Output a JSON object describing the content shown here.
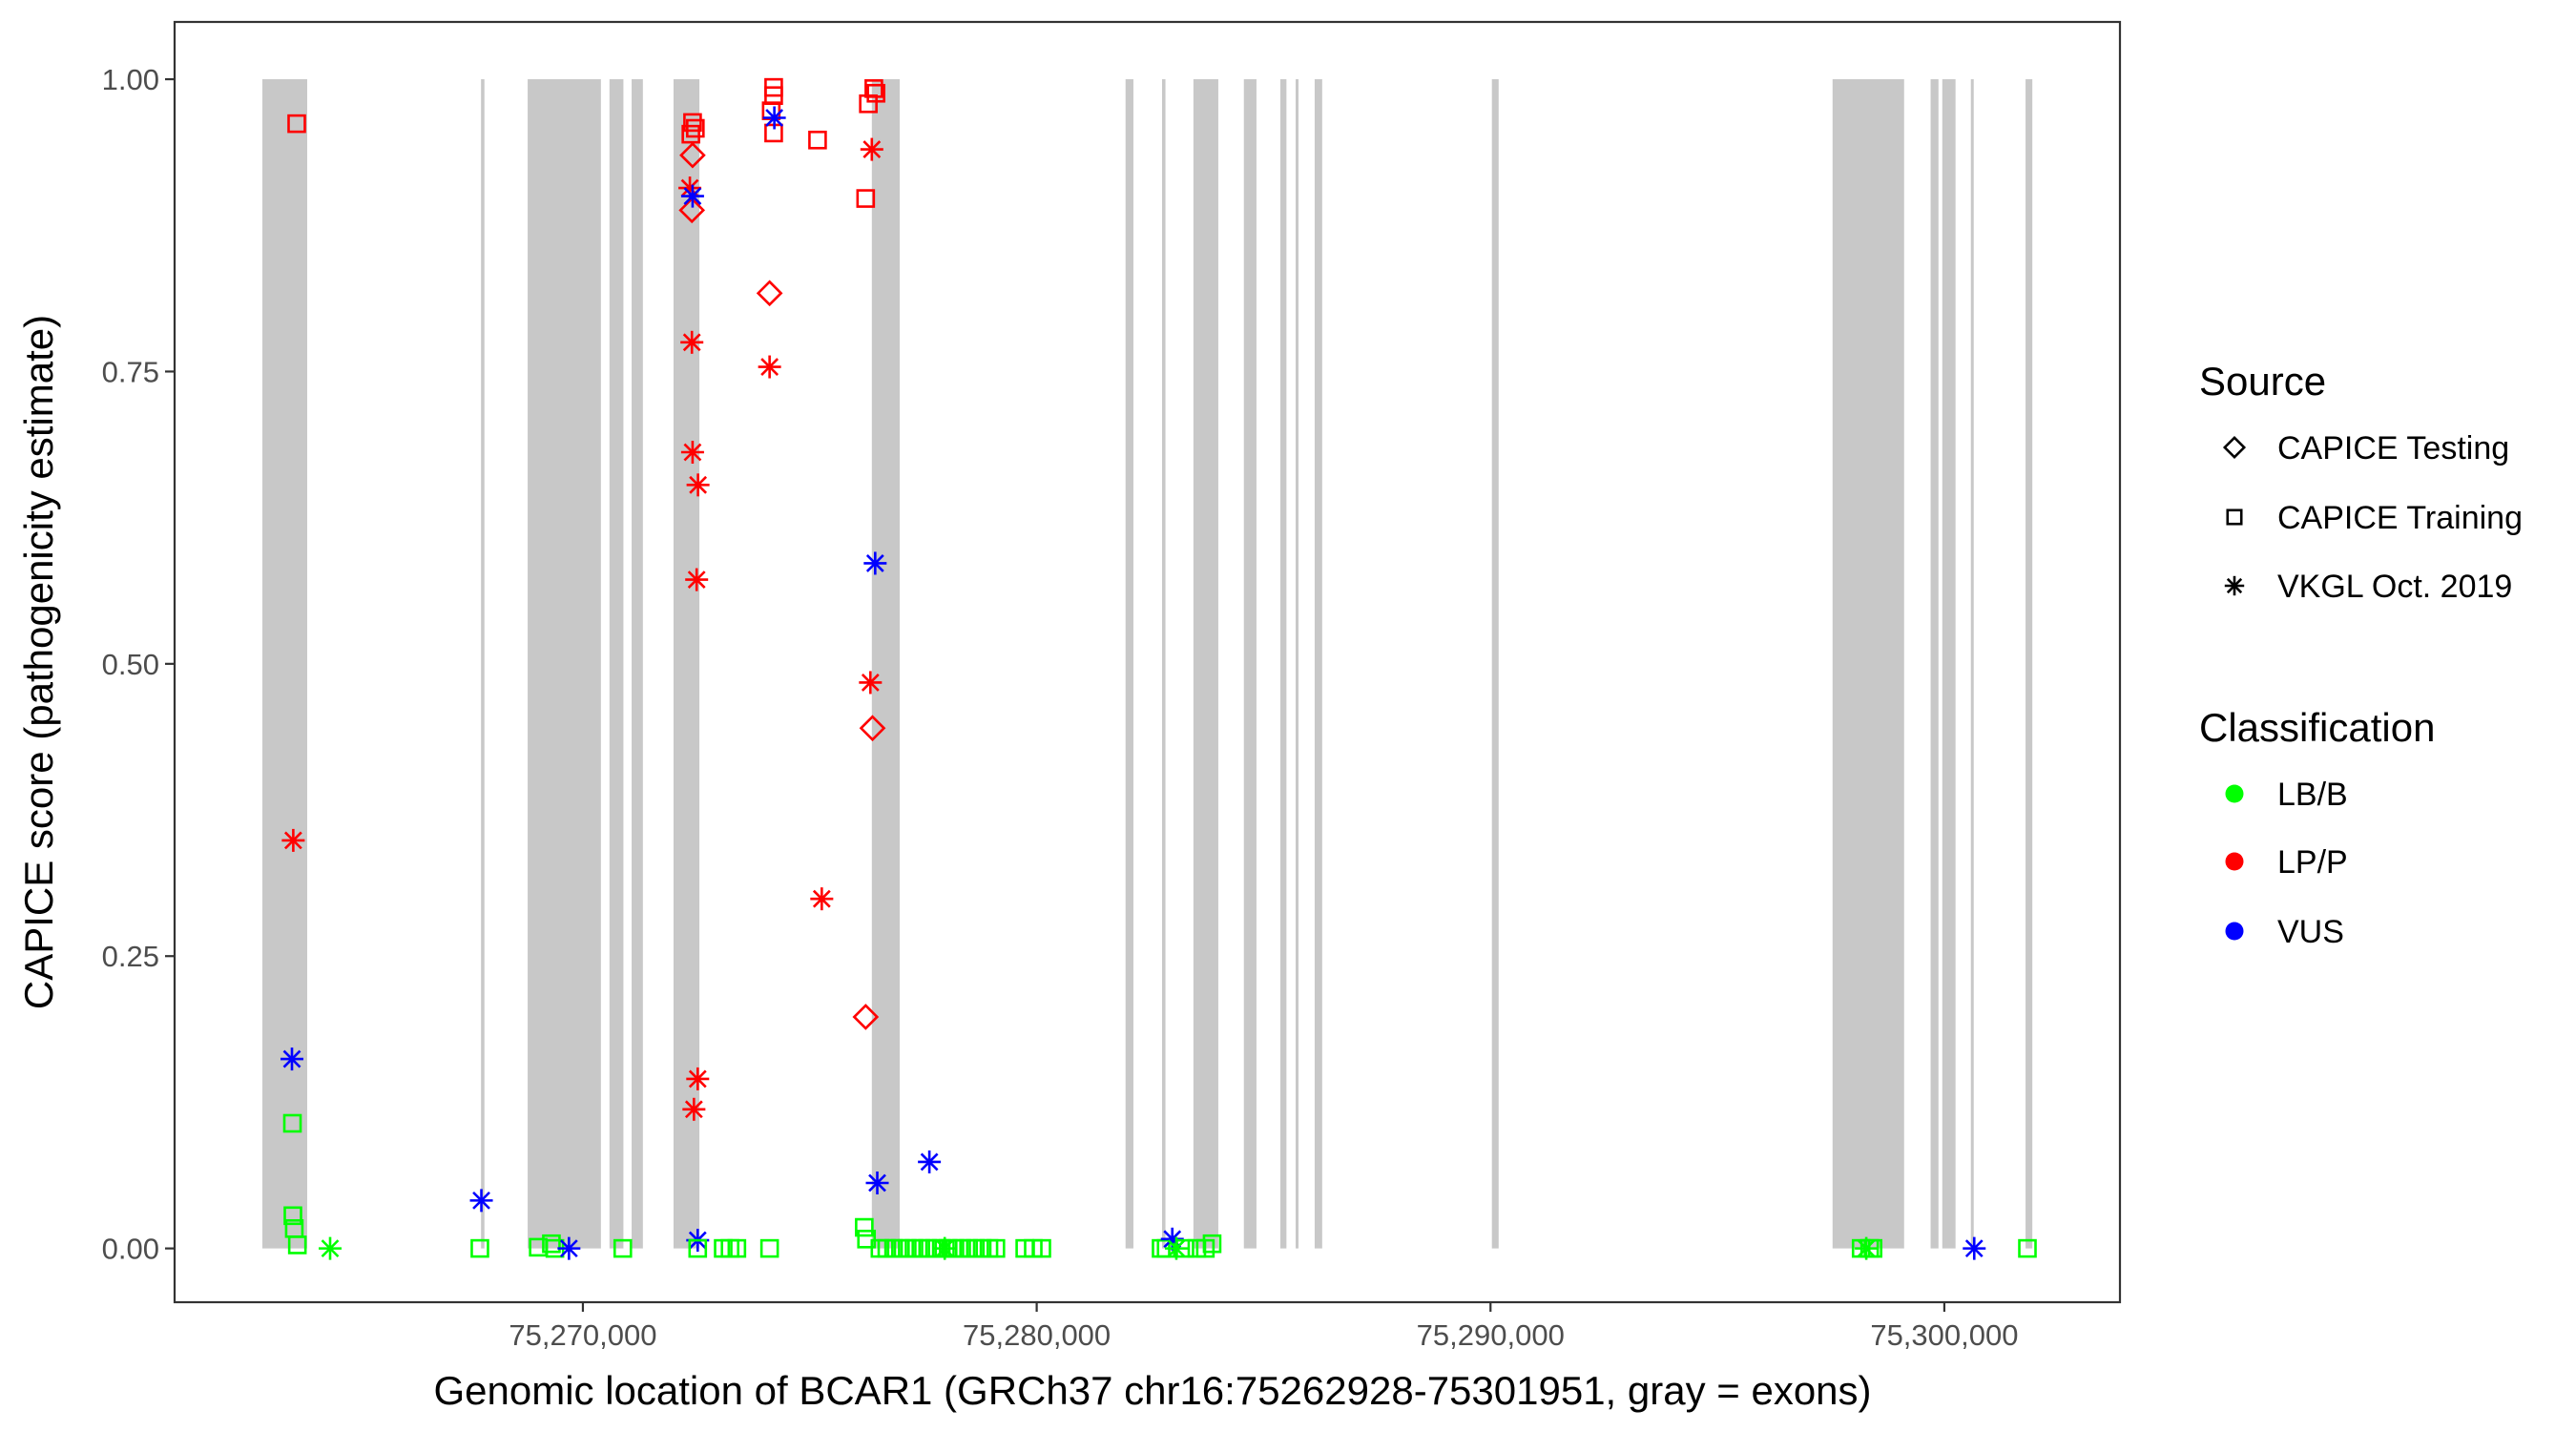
{
  "chart_data": {
    "type": "scatter",
    "xlabel": "Genomic location of BCAR1 (GRCh37 chr16:75262928-75301951, gray = exons)",
    "ylabel": "CAPICE score (pathogenicity estimate)",
    "xlim": [
      75261003,
      75303870
    ],
    "ylim": [
      -0.046,
      1.049
    ],
    "x_ticks": [
      75270000,
      75280000,
      75290000,
      75300000
    ],
    "x_tick_labels": [
      "75,270,000",
      "75,280,000",
      "75,290,000",
      "75,300,000"
    ],
    "y_ticks": [
      0,
      0.25,
      0.5,
      0.75,
      1.0
    ],
    "y_tick_labels": [
      "0.00",
      "0.25",
      "0.50",
      "0.75",
      "1.00"
    ],
    "grid": false,
    "legend_placement": "right",
    "exon_color": "#C8C8C8",
    "exons": [
      [
        75262937,
        75263925
      ],
      [
        75267755,
        75267830
      ],
      [
        75268783,
        75270397
      ],
      [
        75270586,
        75270893
      ],
      [
        75271074,
        75271322
      ],
      [
        75271997,
        75272567
      ],
      [
        75276367,
        75276981
      ],
      [
        75281958,
        75282131
      ],
      [
        75282762,
        75282837
      ],
      [
        75283453,
        75284002
      ],
      [
        75284565,
        75284843
      ],
      [
        75285368,
        75285503
      ],
      [
        75285706,
        75285766
      ],
      [
        75286125,
        75286291
      ],
      [
        75290030,
        75290179
      ],
      [
        75297537,
        75299114
      ],
      [
        75299698,
        75299871
      ],
      [
        75299955,
        75300247
      ],
      [
        75300585,
        75300644
      ],
      [
        75301790,
        75301939
      ]
    ],
    "legend": {
      "source_title": "Source",
      "sources": [
        {
          "key": "test",
          "label": "CAPICE Testing",
          "shape": "diamond"
        },
        {
          "key": "train",
          "label": "CAPICE Training",
          "shape": "square"
        },
        {
          "key": "vkgl",
          "label": "VKGL Oct. 2019",
          "shape": "asterisk"
        }
      ],
      "classification_title": "Classification",
      "classes": [
        {
          "label": "LB/B",
          "color": "#00FF00"
        },
        {
          "label": "LP/P",
          "color": "#FF0000"
        },
        {
          "label": "VUS",
          "color": "#0000FF"
        }
      ]
    },
    "points": [
      {
        "x": 75263694,
        "y": 0.962,
        "source": "train",
        "class": "LP/P"
      },
      {
        "x": 75263618,
        "y": 0.349,
        "source": "vkgl",
        "class": "LP/P"
      },
      {
        "x": 75263589,
        "y": 0.162,
        "source": "vkgl",
        "class": "VUS"
      },
      {
        "x": 75263600,
        "y": 0.107,
        "source": "train",
        "class": "LB/B"
      },
      {
        "x": 75263610,
        "y": 0.028,
        "source": "train",
        "class": "LB/B"
      },
      {
        "x": 75263640,
        "y": 0.017,
        "source": "train",
        "class": "LB/B"
      },
      {
        "x": 75263708,
        "y": 0.003,
        "source": "train",
        "class": "LB/B"
      },
      {
        "x": 75264430,
        "y": 0.0,
        "source": "vkgl",
        "class": "LB/B"
      },
      {
        "x": 75267763,
        "y": 0.041,
        "source": "vkgl",
        "class": "VUS"
      },
      {
        "x": 75267730,
        "y": 0.0,
        "source": "train",
        "class": "LB/B"
      },
      {
        "x": 75269016,
        "y": 0.001,
        "source": "train",
        "class": "LB/B"
      },
      {
        "x": 75269306,
        "y": 0.004,
        "source": "train",
        "class": "LB/B"
      },
      {
        "x": 75269384,
        "y": 0.0,
        "source": "train",
        "class": "LB/B"
      },
      {
        "x": 75269693,
        "y": 0.0,
        "source": "vkgl",
        "class": "VUS"
      },
      {
        "x": 75270879,
        "y": 0.0,
        "source": "train",
        "class": "LB/B"
      },
      {
        "x": 75272417,
        "y": 0.963,
        "source": "train",
        "class": "LP/P"
      },
      {
        "x": 75272478,
        "y": 0.958,
        "source": "train",
        "class": "LP/P"
      },
      {
        "x": 75272380,
        "y": 0.953,
        "source": "train",
        "class": "LP/P"
      },
      {
        "x": 75272417,
        "y": 0.935,
        "source": "test",
        "class": "LP/P"
      },
      {
        "x": 75272402,
        "y": 0.888,
        "source": "test",
        "class": "LP/P"
      },
      {
        "x": 75272357,
        "y": 0.907,
        "source": "vkgl",
        "class": "LP/P"
      },
      {
        "x": 75272417,
        "y": 0.9,
        "source": "vkgl",
        "class": "VUS"
      },
      {
        "x": 75272402,
        "y": 0.775,
        "source": "vkgl",
        "class": "LP/P"
      },
      {
        "x": 75272417,
        "y": 0.681,
        "source": "vkgl",
        "class": "LP/P"
      },
      {
        "x": 75272537,
        "y": 0.653,
        "source": "vkgl",
        "class": "LP/P"
      },
      {
        "x": 75272507,
        "y": 0.572,
        "source": "vkgl",
        "class": "LP/P"
      },
      {
        "x": 75272530,
        "y": 0.145,
        "source": "vkgl",
        "class": "LP/P"
      },
      {
        "x": 75272447,
        "y": 0.119,
        "source": "vkgl",
        "class": "LP/P"
      },
      {
        "x": 75272530,
        "y": 0.007,
        "source": "vkgl",
        "class": "VUS"
      },
      {
        "x": 75272530,
        "y": 0.0,
        "source": "train",
        "class": "LB/B"
      },
      {
        "x": 75273092,
        "y": 0.0,
        "source": "train",
        "class": "LB/B"
      },
      {
        "x": 75273243,
        "y": 0.0,
        "source": "train",
        "class": "LB/B"
      },
      {
        "x": 75273393,
        "y": 0.0,
        "source": "train",
        "class": "LB/B"
      },
      {
        "x": 75274114,
        "y": 0.0,
        "source": "train",
        "class": "LB/B"
      },
      {
        "x": 75274204,
        "y": 0.993,
        "source": "train",
        "class": "LP/P"
      },
      {
        "x": 75274204,
        "y": 0.986,
        "source": "train",
        "class": "LP/P"
      },
      {
        "x": 75274150,
        "y": 0.973,
        "source": "train",
        "class": "LP/P"
      },
      {
        "x": 75274204,
        "y": 0.954,
        "source": "train",
        "class": "LP/P"
      },
      {
        "x": 75274219,
        "y": 0.967,
        "source": "vkgl",
        "class": "VUS"
      },
      {
        "x": 75274114,
        "y": 0.817,
        "source": "test",
        "class": "LP/P"
      },
      {
        "x": 75274114,
        "y": 0.754,
        "source": "vkgl",
        "class": "LP/P"
      },
      {
        "x": 75275171,
        "y": 0.948,
        "source": "train",
        "class": "LP/P"
      },
      {
        "x": 75275264,
        "y": 0.299,
        "source": "vkgl",
        "class": "LP/P"
      },
      {
        "x": 75276411,
        "y": 0.992,
        "source": "train",
        "class": "LP/P"
      },
      {
        "x": 75276459,
        "y": 0.988,
        "source": "train",
        "class": "LP/P"
      },
      {
        "x": 75276290,
        "y": 0.979,
        "source": "train",
        "class": "LP/P"
      },
      {
        "x": 75276231,
        "y": 0.898,
        "source": "train",
        "class": "LP/P"
      },
      {
        "x": 75276367,
        "y": 0.94,
        "source": "vkgl",
        "class": "LP/P"
      },
      {
        "x": 75276441,
        "y": 0.586,
        "source": "vkgl",
        "class": "VUS"
      },
      {
        "x": 75276336,
        "y": 0.484,
        "source": "vkgl",
        "class": "LP/P"
      },
      {
        "x": 75276382,
        "y": 0.445,
        "source": "test",
        "class": "LP/P"
      },
      {
        "x": 75276231,
        "y": 0.198,
        "source": "test",
        "class": "LP/P"
      },
      {
        "x": 75276487,
        "y": 0.056,
        "source": "vkgl",
        "class": "VUS"
      },
      {
        "x": 75277635,
        "y": 0.074,
        "source": "vkgl",
        "class": "VUS"
      },
      {
        "x": 75276200,
        "y": 0.018,
        "source": "train",
        "class": "LB/B"
      },
      {
        "x": 75276250,
        "y": 0.008,
        "source": "train",
        "class": "LB/B"
      },
      {
        "x": 75276546,
        "y": 0.0,
        "source": "train",
        "class": "LB/B"
      },
      {
        "x": 75276697,
        "y": 0.0,
        "source": "train",
        "class": "LB/B"
      },
      {
        "x": 75276846,
        "y": 0.0,
        "source": "train",
        "class": "LB/B"
      },
      {
        "x": 75276998,
        "y": 0.0,
        "source": "train",
        "class": "LB/B"
      },
      {
        "x": 75277147,
        "y": 0.0,
        "source": "train",
        "class": "LB/B"
      },
      {
        "x": 75277296,
        "y": 0.0,
        "source": "train",
        "class": "LB/B"
      },
      {
        "x": 75277447,
        "y": 0.0,
        "source": "train",
        "class": "LB/B"
      },
      {
        "x": 75277597,
        "y": 0.0,
        "source": "train",
        "class": "LB/B"
      },
      {
        "x": 75277748,
        "y": 0.0,
        "source": "train",
        "class": "LB/B"
      },
      {
        "x": 75277897,
        "y": 0.0,
        "source": "train",
        "class": "LB/B"
      },
      {
        "x": 75277973,
        "y": 0.0,
        "source": "vkgl",
        "class": "LB/B"
      },
      {
        "x": 75278049,
        "y": 0.0,
        "source": "train",
        "class": "LB/B"
      },
      {
        "x": 75278198,
        "y": 0.0,
        "source": "train",
        "class": "LB/B"
      },
      {
        "x": 75278347,
        "y": 0.0,
        "source": "train",
        "class": "LB/B"
      },
      {
        "x": 75278499,
        "y": 0.0,
        "source": "train",
        "class": "LB/B"
      },
      {
        "x": 75278648,
        "y": 0.0,
        "source": "train",
        "class": "LB/B"
      },
      {
        "x": 75278799,
        "y": 0.0,
        "source": "train",
        "class": "LB/B"
      },
      {
        "x": 75278948,
        "y": 0.0,
        "source": "train",
        "class": "LB/B"
      },
      {
        "x": 75279100,
        "y": 0.0,
        "source": "train",
        "class": "LB/B"
      },
      {
        "x": 75279737,
        "y": 0.0,
        "source": "train",
        "class": "LB/B"
      },
      {
        "x": 75279924,
        "y": 0.0,
        "source": "train",
        "class": "LB/B"
      },
      {
        "x": 75280113,
        "y": 0.0,
        "source": "train",
        "class": "LB/B"
      },
      {
        "x": 75282741,
        "y": 0.0,
        "source": "train",
        "class": "LB/B"
      },
      {
        "x": 75282852,
        "y": 0.0,
        "source": "train",
        "class": "LB/B"
      },
      {
        "x": 75282988,
        "y": 0.008,
        "source": "vkgl",
        "class": "VUS"
      },
      {
        "x": 75283077,
        "y": 0.0,
        "source": "vkgl",
        "class": "LB/B"
      },
      {
        "x": 75283266,
        "y": 0.0,
        "source": "train",
        "class": "LB/B"
      },
      {
        "x": 75283529,
        "y": 0.0,
        "source": "train",
        "class": "LB/B"
      },
      {
        "x": 75283716,
        "y": 0.0,
        "source": "train",
        "class": "LB/B"
      },
      {
        "x": 75283865,
        "y": 0.004,
        "source": "train",
        "class": "LB/B"
      },
      {
        "x": 75298167,
        "y": 0.0,
        "source": "train",
        "class": "LB/B"
      },
      {
        "x": 75298354,
        "y": 0.0,
        "source": "train",
        "class": "LB/B"
      },
      {
        "x": 75298429,
        "y": 0.0,
        "source": "train",
        "class": "LB/B"
      },
      {
        "x": 75298280,
        "y": 0.0,
        "source": "vkgl",
        "class": "LB/B"
      },
      {
        "x": 75300659,
        "y": 0.0,
        "source": "vkgl",
        "class": "VUS"
      },
      {
        "x": 75301831,
        "y": 0.0,
        "source": "train",
        "class": "LB/B"
      }
    ]
  }
}
